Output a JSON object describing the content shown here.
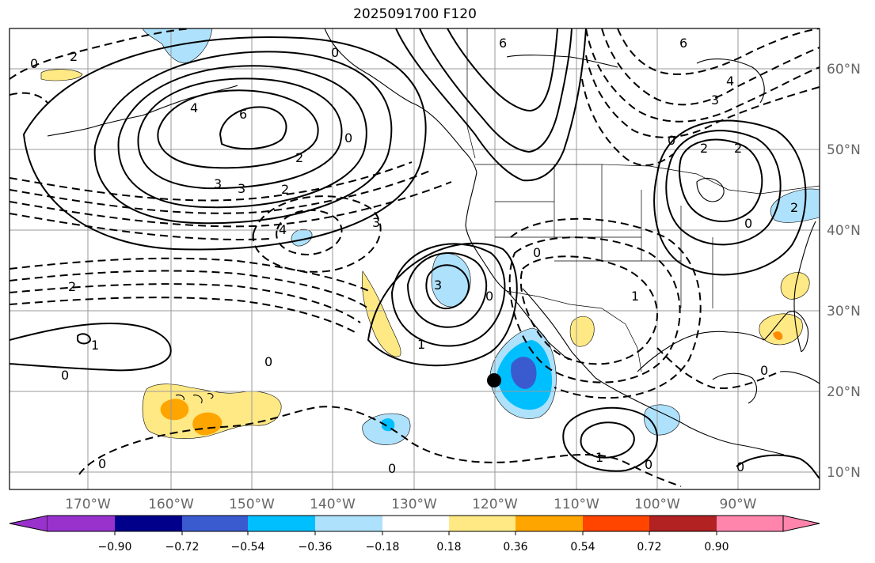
{
  "title": "2025091700 F120",
  "latitude_labels": [
    "60°N",
    "50°N",
    "40°N",
    "30°N",
    "20°N",
    "10°N"
  ],
  "longitude_labels": [
    "170°W",
    "160°W",
    "150°W",
    "140°W",
    "130°W",
    "120°W",
    "110°W",
    "100°W",
    "90°W"
  ],
  "colorbar": {
    "colors": [
      "#9932cc",
      "#00008b",
      "#3a5bd0",
      "#00bfff",
      "#aee1fb",
      "#ffffff",
      "#ffe985",
      "#ffa500",
      "#ff4500",
      "#b22222",
      "#ff85ad"
    ],
    "tick_labels": [
      "−0.90",
      "−0.72",
      "−0.54",
      "−0.36",
      "−0.18",
      "0.18",
      "0.36",
      "0.54",
      "0.72",
      "0.90"
    ]
  },
  "contour_labels": [
    "2",
    "0",
    "0",
    "6",
    "6",
    "4",
    "6",
    "4",
    "3",
    "3",
    "2",
    "2",
    "2",
    "2",
    "0",
    "0",
    "3",
    "2",
    "4",
    "3",
    "3",
    "0",
    "1",
    "1",
    "0",
    "0",
    "2",
    "0",
    "1",
    "0",
    "0",
    "1",
    "0",
    "0",
    "0",
    "0"
  ],
  "storm_marker": "storm-position",
  "colors": {
    "axis": "#000000",
    "grid": "#999999",
    "label": "#666666"
  }
}
